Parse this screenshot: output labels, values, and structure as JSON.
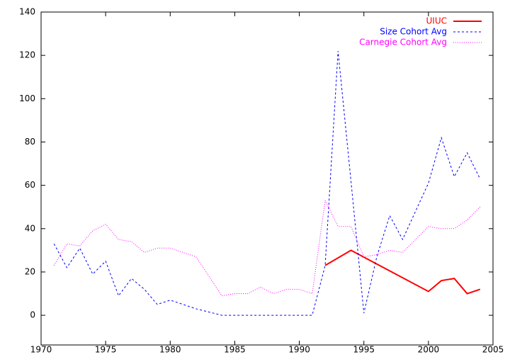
{
  "chart_data": {
    "type": "line",
    "xlim": [
      1970,
      2005
    ],
    "xticks": [
      1970,
      1975,
      1980,
      1985,
      1990,
      1995,
      2000,
      2005
    ],
    "ylim": [
      -13.7,
      140
    ],
    "yticks": [
      0,
      20,
      40,
      60,
      80,
      100,
      120,
      140
    ],
    "legend": "top-right",
    "series": [
      {
        "name": "UIUC",
        "color": "#ff0000",
        "dash": "solid",
        "x": [
          1992,
          1994,
          2000,
          2001,
          2002,
          2003,
          2004
        ],
        "values": [
          23,
          30,
          11,
          16,
          17,
          10,
          12
        ]
      },
      {
        "name": "Size Cohort Avg",
        "color": "#0000ff",
        "dash": "dashed",
        "x": [
          1971,
          1972,
          1973,
          1974,
          1975,
          1976,
          1977,
          1978,
          1979,
          1980,
          1981,
          1982,
          1983,
          1984,
          1985,
          1986,
          1987,
          1988,
          1989,
          1990,
          1991,
          1992,
          1993,
          1994,
          1995,
          1996,
          1997,
          1998,
          1999,
          2000,
          2001,
          2002,
          2003,
          2004
        ],
        "values": [
          33,
          22,
          31,
          19,
          25,
          9,
          17,
          12,
          5,
          7,
          5,
          3,
          1.5,
          0,
          0,
          0,
          0,
          0,
          0,
          0,
          0,
          23,
          122,
          62,
          1,
          27,
          46,
          35,
          48,
          61,
          82,
          64,
          75,
          63
        ]
      },
      {
        "name": "Carnegie Cohort Avg",
        "color": "#ff00ff",
        "dash": "dotted",
        "x": [
          1971,
          1972,
          1973,
          1974,
          1975,
          1976,
          1977,
          1978,
          1979,
          1980,
          1981,
          1982,
          1983,
          1984,
          1985,
          1986,
          1987,
          1988,
          1989,
          1990,
          1991,
          1992,
          1993,
          1994,
          1995,
          1996,
          1997,
          1998,
          1999,
          2000,
          2001,
          2002,
          2003,
          2004
        ],
        "values": [
          23,
          33,
          32,
          39,
          42,
          35,
          34,
          29,
          31,
          31,
          29,
          27,
          18,
          9,
          10,
          10,
          13,
          10,
          12,
          12,
          10,
          53,
          41,
          41,
          27,
          28,
          30,
          29,
          35,
          41,
          40,
          40,
          44,
          50
        ]
      }
    ]
  }
}
